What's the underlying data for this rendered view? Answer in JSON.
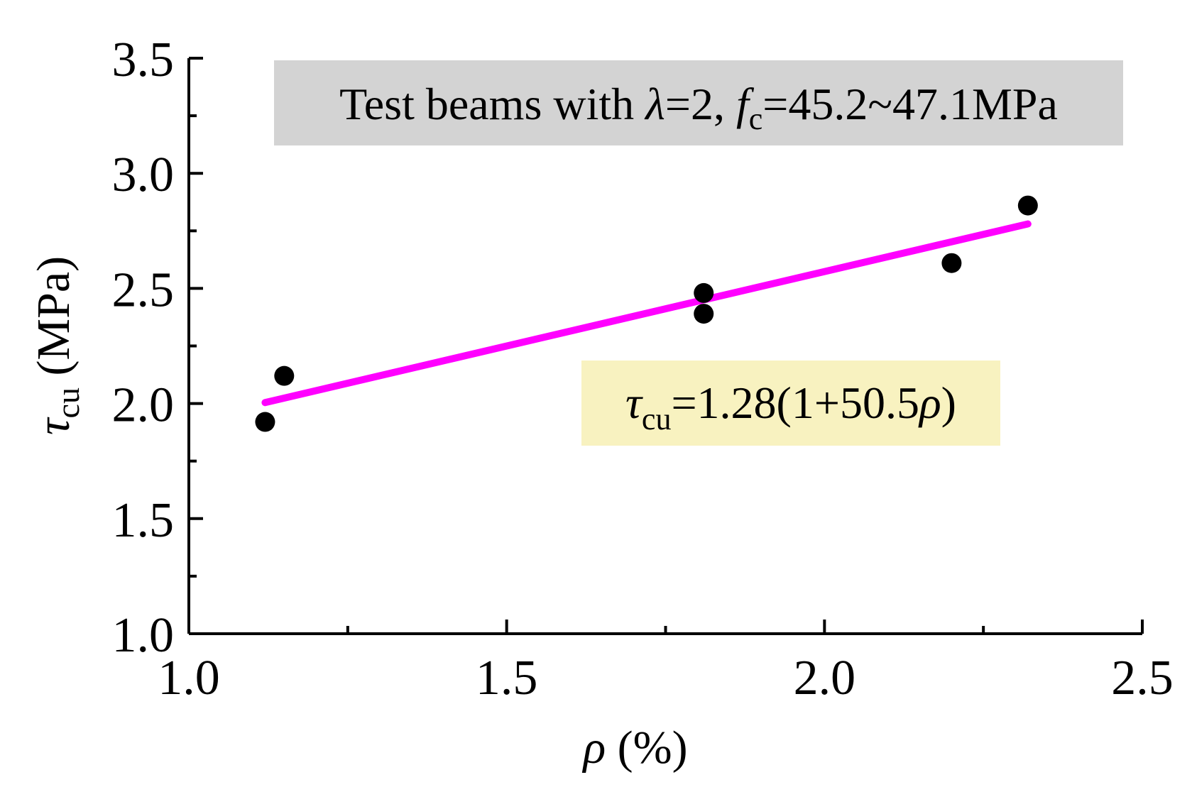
{
  "chart_data": {
    "type": "scatter",
    "xlabel": {
      "symbol": "ρ",
      "rest": " (%)"
    },
    "ylabel": {
      "symbol": "τ",
      "sub": "cu",
      "rest": " (MPa)"
    },
    "xlim": [
      1.0,
      2.5
    ],
    "ylim": [
      1.0,
      3.5
    ],
    "x_ticks": [
      "1.0",
      "1.5",
      "2.0",
      "2.5"
    ],
    "y_ticks": [
      "1.0",
      "1.5",
      "2.0",
      "2.5",
      "3.0",
      "3.5"
    ],
    "x_minor_step": 0.25,
    "y_minor_step": 0.25,
    "grid": false,
    "points": {
      "x": [
        1.12,
        1.15,
        1.81,
        1.81,
        2.2,
        2.32
      ],
      "y": [
        1.92,
        2.12,
        2.48,
        2.39,
        2.61,
        2.86
      ],
      "color": "#000000",
      "marker": "filled-circle"
    },
    "fit_line": {
      "x": [
        1.12,
        2.32
      ],
      "y": [
        2.004,
        2.78
      ],
      "color": "#ff00ff"
    },
    "annotations": {
      "title_box": {
        "text_before": "Test beams with ",
        "lambda": "λ",
        "text_middle": "=2, ",
        "f": "f",
        "f_sub": "c",
        "text_after": "=45.2~47.1MPa",
        "background": "#d3d3d3"
      },
      "equation_box": {
        "tau": "τ",
        "tau_sub": "cu",
        "text_middle": "=1.28(1+50.5",
        "rho": "ρ",
        "text_after": ")",
        "background": "#f8f2c0"
      }
    }
  }
}
